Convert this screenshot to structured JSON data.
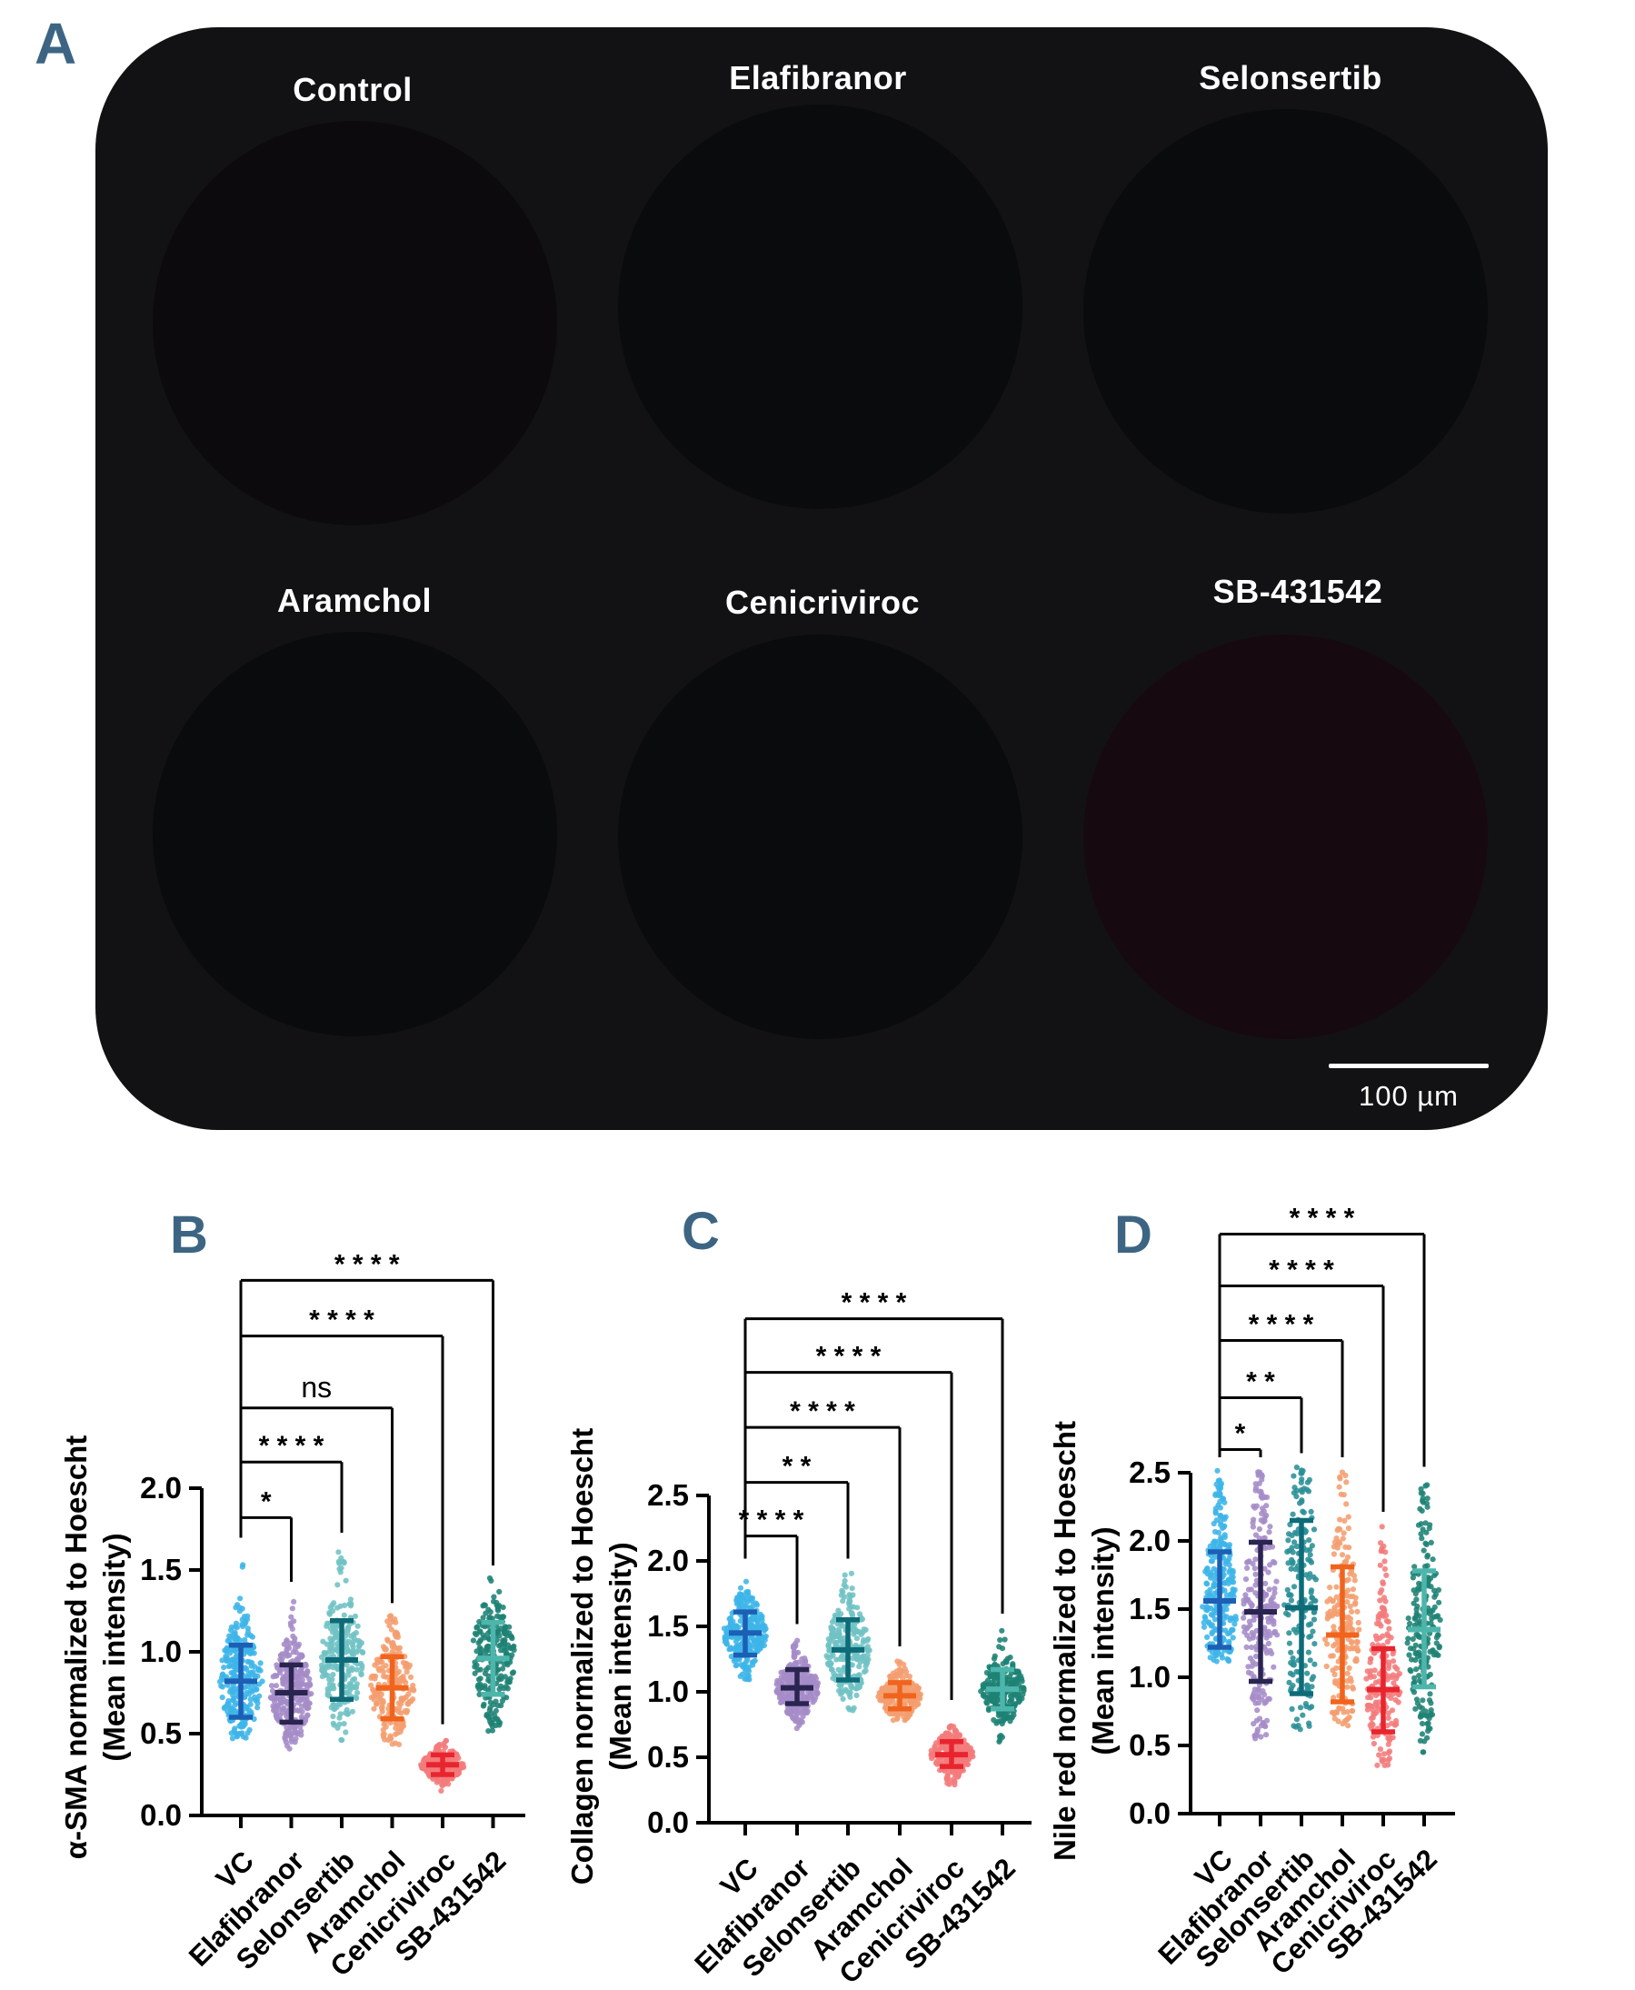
{
  "accent_letter_color": "#3d6583",
  "panel_a": {
    "label": "A",
    "image_labels": [
      "Control",
      "Elafibranor",
      "Selonsertib",
      "Aramchol",
      "Cenicriviroc",
      "SB-431542"
    ],
    "scale_bar_label": "100 µm"
  },
  "palette": {
    "magenta": "#dd2f9d",
    "pink": "#f84ecb",
    "red": "#c41a28",
    "crimson": "#a31226",
    "green": "#44d33e",
    "bright_green": "#7deb2c",
    "blue": "#506ee9",
    "orange": "#c97b2d",
    "lavender": "#8f7cc2"
  },
  "chart_data": [
    {
      "type": "scatter",
      "panel": "B",
      "ylabel": "α-SMA normalized to Hoescht (Mean intensity)",
      "ylabel_lines": [
        "α-SMA normalized to Hoescht",
        "(Mean intensity)"
      ],
      "ylim": [
        0,
        2.0
      ],
      "yticks": [
        0.0,
        0.5,
        1.0,
        1.5,
        2.0
      ],
      "grid": false,
      "categories": [
        "VC",
        "Elafibranor",
        "Selonsertib",
        "Aramchol",
        "Cenicriviroc",
        "SB-431542"
      ],
      "series": [
        {
          "name": "VC",
          "dot_color": "#3db5e8",
          "bar_color": "#1d5fb5",
          "mean": 0.82,
          "sd_low": 0.6,
          "sd_high": 1.04,
          "min": 0.45,
          "max": 1.62,
          "n": 280
        },
        {
          "name": "Elafibranor",
          "dot_color": "#a58cc8",
          "bar_color": "#2a2550",
          "mean": 0.75,
          "sd_low": 0.57,
          "sd_high": 0.92,
          "min": 0.4,
          "max": 1.35,
          "n": 280
        },
        {
          "name": "Selonsertib",
          "dot_color": "#6fc2c4",
          "bar_color": "#0e6b78",
          "mean": 0.95,
          "sd_low": 0.71,
          "sd_high": 1.19,
          "min": 0.42,
          "max": 1.65,
          "n": 230
        },
        {
          "name": "Aramchol",
          "dot_color": "#f49e70",
          "bar_color": "#f0641e",
          "mean": 0.78,
          "sd_low": 0.59,
          "sd_high": 0.97,
          "min": 0.42,
          "max": 1.22,
          "n": 210
        },
        {
          "name": "Cenicriviroc",
          "dot_color": "#f47b7b",
          "bar_color": "#e8252f",
          "mean": 0.31,
          "sd_low": 0.25,
          "sd_high": 0.37,
          "min": 0.15,
          "max": 0.48,
          "n": 200
        },
        {
          "name": "SB-431542",
          "dot_color": "#1e8274",
          "bar_color": "#4db6ac",
          "mean": 0.96,
          "sd_low": 0.74,
          "sd_high": 1.18,
          "min": 0.5,
          "max": 1.45,
          "n": 230
        }
      ],
      "comparisons": [
        {
          "from": "VC",
          "to": "Elafibranor",
          "label": "*",
          "height": 1.82
        },
        {
          "from": "VC",
          "to": "Selonsertib",
          "label": "****",
          "height": 2.16
        },
        {
          "from": "VC",
          "to": "Aramchol",
          "label": "ns",
          "height": 2.49
        },
        {
          "from": "VC",
          "to": "Cenicriviroc",
          "label": "****",
          "height": 2.93
        },
        {
          "from": "VC",
          "to": "SB-431542",
          "label": "****",
          "height": 3.27
        }
      ]
    },
    {
      "type": "scatter",
      "panel": "C",
      "ylabel": "Collagen normalized to Hoescht (Mean intensity)",
      "ylabel_lines": [
        "Collagen normalized to Hoescht",
        "(Mean intensity)"
      ],
      "ylim": [
        0,
        2.5
      ],
      "yticks": [
        0.0,
        0.5,
        1.0,
        1.5,
        2.0,
        2.5
      ],
      "grid": false,
      "categories": [
        "VC",
        "Elafibranor",
        "Selonsertib",
        "Aramchol",
        "Cenicriviroc",
        "SB-431542"
      ],
      "series": [
        {
          "name": "VC",
          "dot_color": "#3db5e8",
          "bar_color": "#1d5fb5",
          "mean": 1.45,
          "sd_low": 1.28,
          "sd_high": 1.61,
          "min": 1.08,
          "max": 1.92,
          "n": 280
        },
        {
          "name": "Elafibranor",
          "dot_color": "#a58cc8",
          "bar_color": "#2a2550",
          "mean": 1.03,
          "sd_low": 0.91,
          "sd_high": 1.17,
          "min": 0.72,
          "max": 1.42,
          "n": 280
        },
        {
          "name": "Selonsertib",
          "dot_color": "#6fc2c4",
          "bar_color": "#0e6b78",
          "mean": 1.32,
          "sd_low": 1.09,
          "sd_high": 1.55,
          "min": 0.85,
          "max": 1.92,
          "n": 240
        },
        {
          "name": "Aramchol",
          "dot_color": "#f49e70",
          "bar_color": "#f0641e",
          "mean": 0.97,
          "sd_low": 0.87,
          "sd_high": 1.07,
          "min": 0.74,
          "max": 1.25,
          "n": 200
        },
        {
          "name": "Cenicriviroc",
          "dot_color": "#f47b7b",
          "bar_color": "#e8252f",
          "mean": 0.52,
          "sd_low": 0.43,
          "sd_high": 0.62,
          "min": 0.29,
          "max": 0.84,
          "n": 240
        },
        {
          "name": "SB-431542",
          "dot_color": "#1e8274",
          "bar_color": "#4db6ac",
          "mean": 1.02,
          "sd_low": 0.87,
          "sd_high": 1.17,
          "min": 0.61,
          "max": 1.5,
          "n": 240
        }
      ],
      "comparisons": [
        {
          "from": "VC",
          "to": "Elafibranor",
          "label": "****",
          "height": 2.19
        },
        {
          "from": "VC",
          "to": "Selonsertib",
          "label": "**",
          "height": 2.6
        },
        {
          "from": "VC",
          "to": "Aramchol",
          "label": "****",
          "height": 3.02
        },
        {
          "from": "VC",
          "to": "Cenicriviroc",
          "label": "****",
          "height": 3.44
        },
        {
          "from": "VC",
          "to": "SB-431542",
          "label": "****",
          "height": 3.85
        }
      ]
    },
    {
      "type": "scatter",
      "panel": "D",
      "ylabel": "Nile red normalized to Hoescht (Mean intensity)",
      "ylabel_lines": [
        "Nile red normalized to Hoescht",
        "(Mean intensity)"
      ],
      "ylim": [
        0,
        2.5
      ],
      "yticks": [
        0.0,
        0.5,
        1.0,
        1.5,
        2.0,
        2.5
      ],
      "grid": false,
      "categories": [
        "VC",
        "Elafibranor",
        "Selonsertib",
        "Aramchol",
        "Cenicriviroc",
        "SB-431542"
      ],
      "series": [
        {
          "name": "VC",
          "dot_color": "#3db5e8",
          "bar_color": "#1d5fb5",
          "mean": 1.56,
          "sd_low": 1.22,
          "sd_high": 1.92,
          "min": 1.05,
          "max": 2.52,
          "n": 240
        },
        {
          "name": "Elafibranor",
          "dot_color": "#a58cc8",
          "bar_color": "#2a2550",
          "mean": 1.48,
          "sd_low": 0.97,
          "sd_high": 1.99,
          "min": 0.52,
          "max": 2.52,
          "n": 220
        },
        {
          "name": "Selonsertib",
          "dot_color": "#2a8f96",
          "bar_color": "#0e6b78",
          "mean": 1.51,
          "sd_low": 0.88,
          "sd_high": 2.15,
          "min": 0.6,
          "max": 2.55,
          "n": 170
        },
        {
          "name": "Aramchol",
          "dot_color": "#f49e70",
          "bar_color": "#f0641e",
          "mean": 1.31,
          "sd_low": 0.82,
          "sd_high": 1.81,
          "min": 0.6,
          "max": 2.52,
          "n": 200
        },
        {
          "name": "Cenicriviroc",
          "dot_color": "#f47b7b",
          "bar_color": "#e8252f",
          "mean": 0.91,
          "sd_low": 0.6,
          "sd_high": 1.21,
          "min": 0.35,
          "max": 2.12,
          "n": 190
        },
        {
          "name": "SB-431542",
          "dot_color": "#1e8274",
          "bar_color": "#4db6ac",
          "mean": 1.35,
          "sd_low": 0.93,
          "sd_high": 1.78,
          "min": 0.45,
          "max": 2.45,
          "n": 210
        }
      ],
      "comparisons": [
        {
          "from": "VC",
          "to": "Elafibranor",
          "label": "*",
          "height": 2.67
        },
        {
          "from": "VC",
          "to": "Selonsertib",
          "label": "**",
          "height": 3.05
        },
        {
          "from": "VC",
          "to": "Aramchol",
          "label": "****",
          "height": 3.47
        },
        {
          "from": "VC",
          "to": "Cenicriviroc",
          "label": "****",
          "height": 3.87
        },
        {
          "from": "VC",
          "to": "SB-431542",
          "label": "****",
          "height": 4.25
        }
      ]
    }
  ]
}
